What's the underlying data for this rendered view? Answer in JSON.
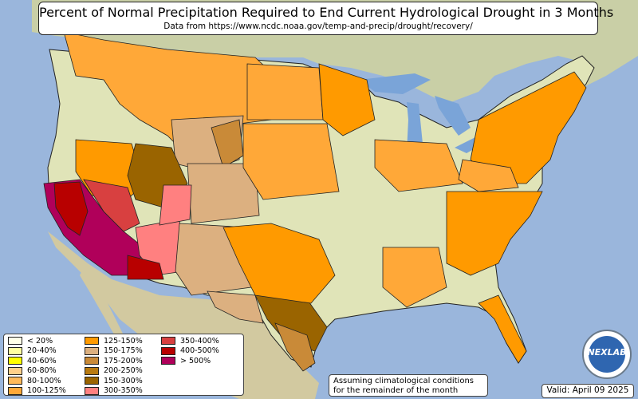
{
  "title": "Percent of Normal Precipitation Required to End Current Hydrological Drought in 3 Months",
  "subtitle": "Data from https://www.ncdc.noaa.gov/temp-and-precip/drought/recovery/",
  "legend": [
    {
      "label": "< 20%",
      "color": "#ffffe8"
    },
    {
      "label": "20-40%",
      "color": "#ffffa0"
    },
    {
      "label": "40-60%",
      "color": "#ffff00"
    },
    {
      "label": "60-80%",
      "color": "#ffd08a"
    },
    {
      "label": "80-100%",
      "color": "#ffba5a"
    },
    {
      "label": "100-125%",
      "color": "#ffa838"
    },
    {
      "label": "125-150%",
      "color": "#ff9a00"
    },
    {
      "label": "150-175%",
      "color": "#dcb080"
    },
    {
      "label": "175-200%",
      "color": "#c98a38"
    },
    {
      "label": "200-250%",
      "color": "#b87a10"
    },
    {
      "label": "150-300%",
      "color": "#9a6400"
    },
    {
      "label": "300-350%",
      "color": "#ff8080"
    },
    {
      "label": "350-400%",
      "color": "#d84040"
    },
    {
      "label": "400-500%",
      "color": "#b80000"
    },
    {
      "label": "> 500%",
      "color": "#b0005a"
    }
  ],
  "note_line1": "Assuming climatological conditions",
  "note_line2": "for the remainder of the month",
  "valid": "Valid: April 09 2025",
  "logo_text": "NEXLAB"
}
